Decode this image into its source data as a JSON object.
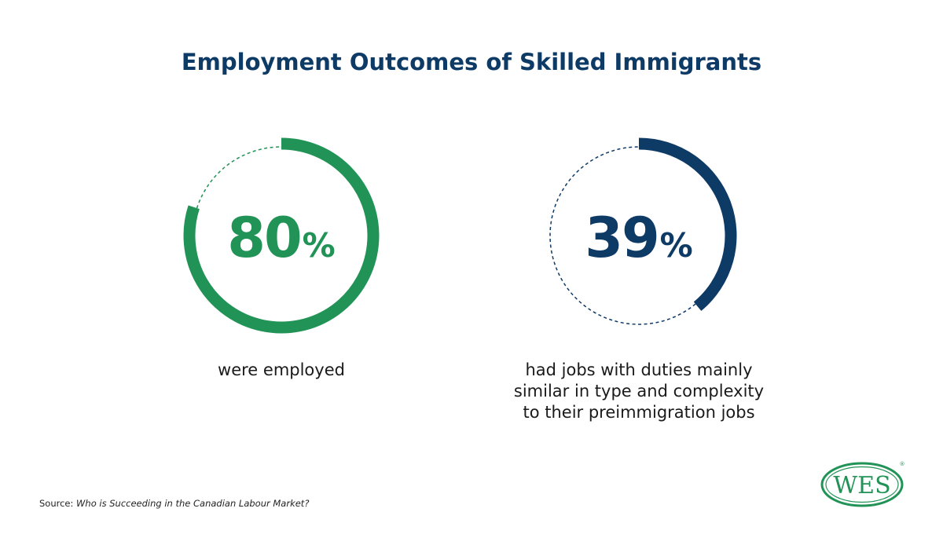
{
  "title": "Employment Outcomes of Skilled Immigrants",
  "chart_data": [
    {
      "type": "pie",
      "value": 80,
      "value_text": "80",
      "unit": "%",
      "caption_lines": [
        "were employed"
      ],
      "color": "#229356"
    },
    {
      "type": "pie",
      "value": 39,
      "value_text": "39",
      "unit": "%",
      "caption_lines": [
        "had jobs with duties mainly",
        "similar in type and complexity",
        "to their preimmigration jobs"
      ],
      "color": "#0e3a66"
    }
  ],
  "source": {
    "label": "Source:",
    "title": "Who is Succeeding in the Canadian Labour Market?"
  },
  "logo": {
    "text": "WES",
    "registered": "®",
    "color": "#229356"
  }
}
